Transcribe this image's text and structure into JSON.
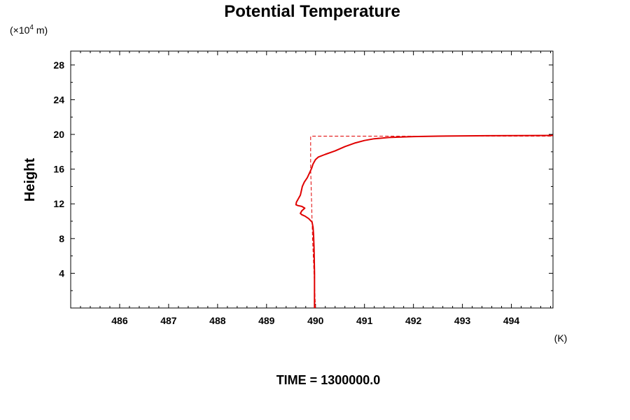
{
  "chart_data": {
    "type": "line",
    "title": "Potential Temperature",
    "ylabel": "Height",
    "yunit_prefix": "(×10",
    "yunit_exp": "4",
    "yunit_suffix": " m)",
    "xunit": "(K)",
    "footer": "TIME = 1300000.0",
    "xlim": [
      485.0,
      494.85
    ],
    "ylim": [
      0.0,
      29.6
    ],
    "xticks": [
      486,
      487,
      488,
      489,
      490,
      491,
      492,
      493,
      494
    ],
    "yticks": [
      4,
      8,
      12,
      16,
      20,
      24,
      28
    ],
    "grid": false,
    "series": [
      {
        "color": "#e00000",
        "style": "dashed",
        "points": [
          [
            490.0,
            0.0
          ],
          [
            489.97,
            4.0
          ],
          [
            489.94,
            8.0
          ],
          [
            489.92,
            12.0
          ],
          [
            489.9,
            16.0
          ],
          [
            489.9,
            19.8
          ],
          [
            491.4,
            19.8
          ],
          [
            494.85,
            19.8
          ]
        ]
      },
      {
        "color": "#e00000",
        "style": "solid",
        "points": [
          [
            489.98,
            0.0
          ],
          [
            489.98,
            4.0
          ],
          [
            489.97,
            7.0
          ],
          [
            489.96,
            8.5
          ],
          [
            489.95,
            9.3
          ],
          [
            489.93,
            9.9
          ],
          [
            489.86,
            10.3
          ],
          [
            489.78,
            10.6
          ],
          [
            489.72,
            10.75
          ],
          [
            489.69,
            10.9
          ],
          [
            489.72,
            11.2
          ],
          [
            489.78,
            11.5
          ],
          [
            489.72,
            11.7
          ],
          [
            489.64,
            11.8
          ],
          [
            489.6,
            11.9
          ],
          [
            489.61,
            12.2
          ],
          [
            489.65,
            12.6
          ],
          [
            489.69,
            13.0
          ],
          [
            489.71,
            13.5
          ],
          [
            489.73,
            14.0
          ],
          [
            489.77,
            14.5
          ],
          [
            489.83,
            15.0
          ],
          [
            489.88,
            15.6
          ],
          [
            489.92,
            16.1
          ],
          [
            489.95,
            16.6
          ],
          [
            490.0,
            17.1
          ],
          [
            490.06,
            17.4
          ],
          [
            490.2,
            17.7
          ],
          [
            490.4,
            18.1
          ],
          [
            490.6,
            18.6
          ],
          [
            490.8,
            19.0
          ],
          [
            491.0,
            19.3
          ],
          [
            491.2,
            19.5
          ],
          [
            491.5,
            19.65
          ],
          [
            492.0,
            19.75
          ],
          [
            492.5,
            19.8
          ],
          [
            493.5,
            19.85
          ],
          [
            494.85,
            19.88
          ]
        ]
      }
    ]
  }
}
